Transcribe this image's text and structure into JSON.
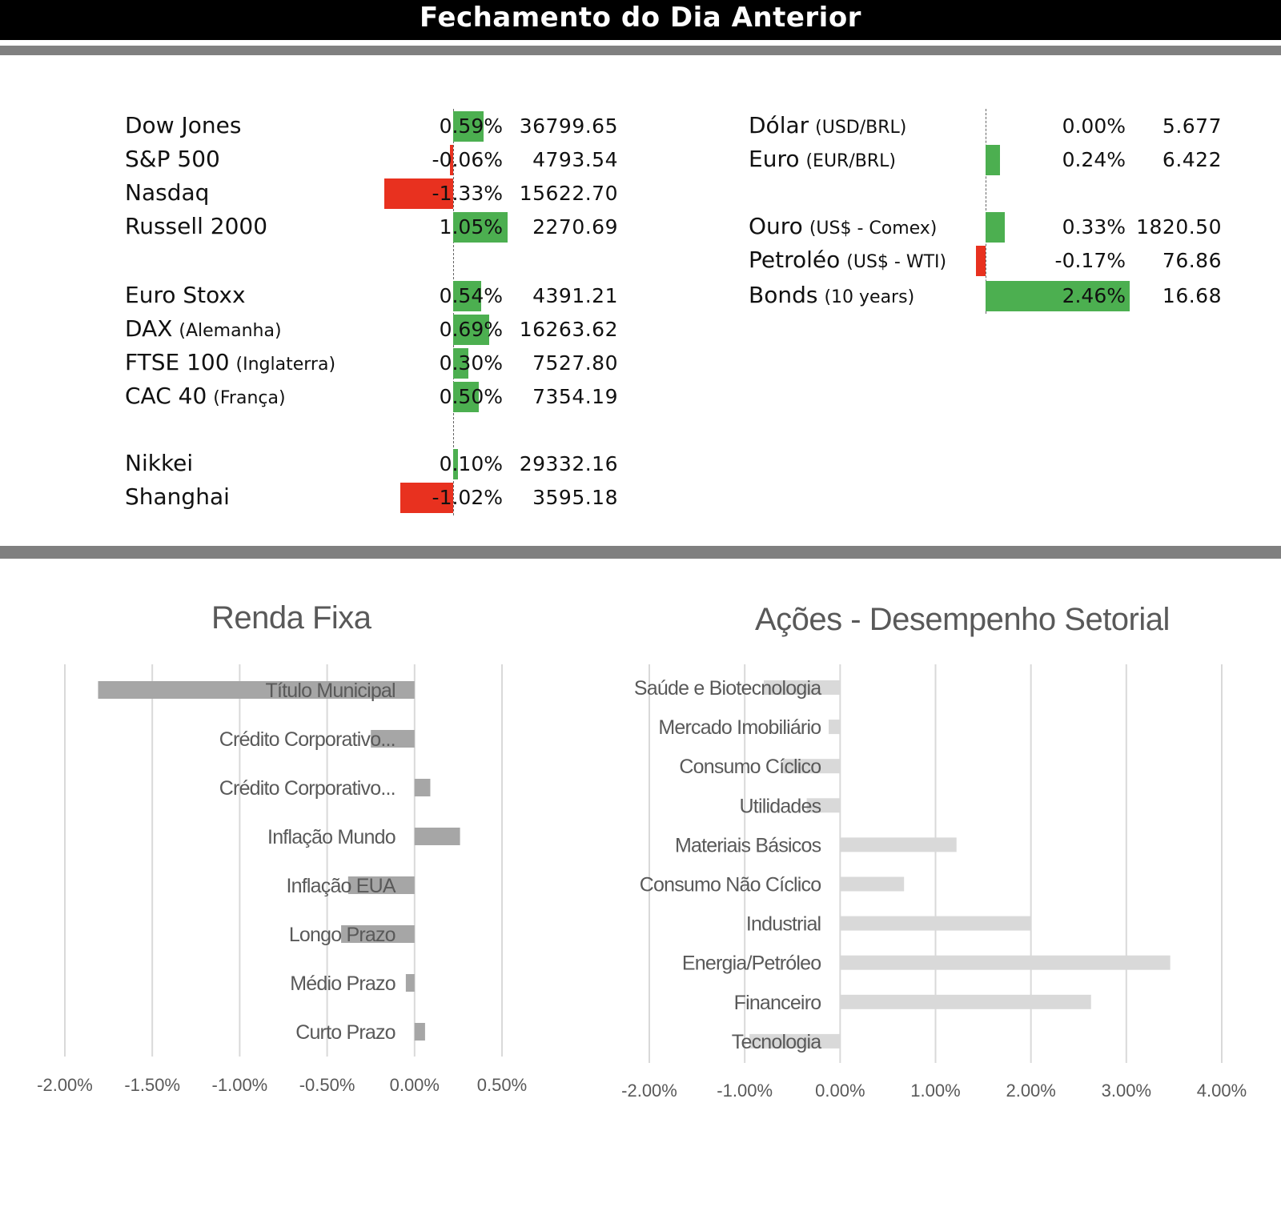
{
  "header": {
    "title": "Fechamento do Dia Anterior"
  },
  "colors": {
    "positive": "#4caf50",
    "negative": "#e8311f",
    "renda_bar": "#a6a6a6",
    "setorial_bar": "#d9d9d9",
    "grid": "#d9d9d9",
    "text": "#595959"
  },
  "markets": [
    {
      "name": "Dow Jones",
      "sub": "",
      "pct": "0.59%",
      "change": 0.59,
      "value": "36799.65"
    },
    {
      "name": "S&P 500",
      "sub": "",
      "pct": "-0.06%",
      "change": -0.06,
      "value": "4793.54"
    },
    {
      "name": "Nasdaq",
      "sub": "",
      "pct": "-1.33%",
      "change": -1.33,
      "value": "15622.70"
    },
    {
      "name": "Russell 2000",
      "sub": "",
      "pct": "1.05%",
      "change": 1.05,
      "value": "2270.69"
    },
    {
      "name": "Euro Stoxx",
      "sub": "",
      "pct": "0.54%",
      "change": 0.54,
      "value": "4391.21"
    },
    {
      "name": "DAX",
      "sub": "(Alemanha)",
      "pct": "0.69%",
      "change": 0.69,
      "value": "16263.62"
    },
    {
      "name": "FTSE 100",
      "sub": "(Inglaterra)",
      "pct": "0.30%",
      "change": 0.3,
      "value": "7527.80"
    },
    {
      "name": "CAC 40",
      "sub": "(França)",
      "pct": "0.50%",
      "change": 0.5,
      "value": "7354.19"
    },
    {
      "name": "Nikkei",
      "sub": "",
      "pct": "0.10%",
      "change": 0.1,
      "value": "29332.16"
    },
    {
      "name": "Shanghai",
      "sub": "",
      "pct": "-1.02%",
      "change": -1.02,
      "value": "3595.18"
    }
  ],
  "assets": [
    {
      "name": "Dólar",
      "sub": "(USD/BRL)",
      "pct": "0.00%",
      "change": 0.0,
      "value": "5.677"
    },
    {
      "name": "Euro",
      "sub": "(EUR/BRL)",
      "pct": "0.24%",
      "change": 0.24,
      "value": "6.422"
    },
    {
      "name": "Ouro",
      "sub": "(US$ - Comex)",
      "pct": "0.33%",
      "change": 0.33,
      "value": "1820.50"
    },
    {
      "name": "Petroléo",
      "sub": "(US$ - WTI)",
      "pct": "-0.17%",
      "change": -0.17,
      "value": "76.86"
    },
    {
      "name": "Bonds",
      "sub": "(10 years)",
      "pct": "2.46%",
      "change": 2.46,
      "value": "16.68"
    }
  ],
  "chart_data": [
    {
      "type": "bar",
      "orientation": "horizontal",
      "title": "Renda Fixa",
      "categories": [
        "Título Municipal",
        "Crédito Corporativo...",
        "Crédito Corporativo...",
        "Inflação Mundo",
        "Inflação EUA",
        "Longo Prazo",
        "Médio Prazo",
        "Curto Prazo"
      ],
      "values": [
        -1.81,
        -0.25,
        0.09,
        0.26,
        -0.38,
        -0.42,
        -0.05,
        0.06
      ],
      "xlim": [
        -2.0,
        0.5
      ],
      "xticks": [
        "-2.00%",
        "-1.50%",
        "-1.00%",
        "-0.50%",
        "0.00%",
        "0.50%"
      ],
      "grid": true
    },
    {
      "type": "bar",
      "orientation": "horizontal",
      "title": "Ações - Desempenho Setorial",
      "categories": [
        "Saúde e Biotecnologia",
        "Mercado Imobiliário",
        "Consumo Cíclico",
        "Utilidades",
        "Materiais Básicos",
        "Consumo Não Cíclico",
        "Industrial",
        "Energia/Petróleo",
        "Financeiro",
        "Tecnologia"
      ],
      "values": [
        -0.8,
        -0.12,
        -0.6,
        -0.35,
        1.22,
        0.67,
        2.0,
        3.46,
        2.63,
        -0.95
      ],
      "xlim": [
        -2.0,
        4.0
      ],
      "xticks": [
        "-2.00%",
        "-1.00%",
        "0.00%",
        "1.00%",
        "2.00%",
        "3.00%",
        "4.00%"
      ],
      "grid": true
    }
  ]
}
